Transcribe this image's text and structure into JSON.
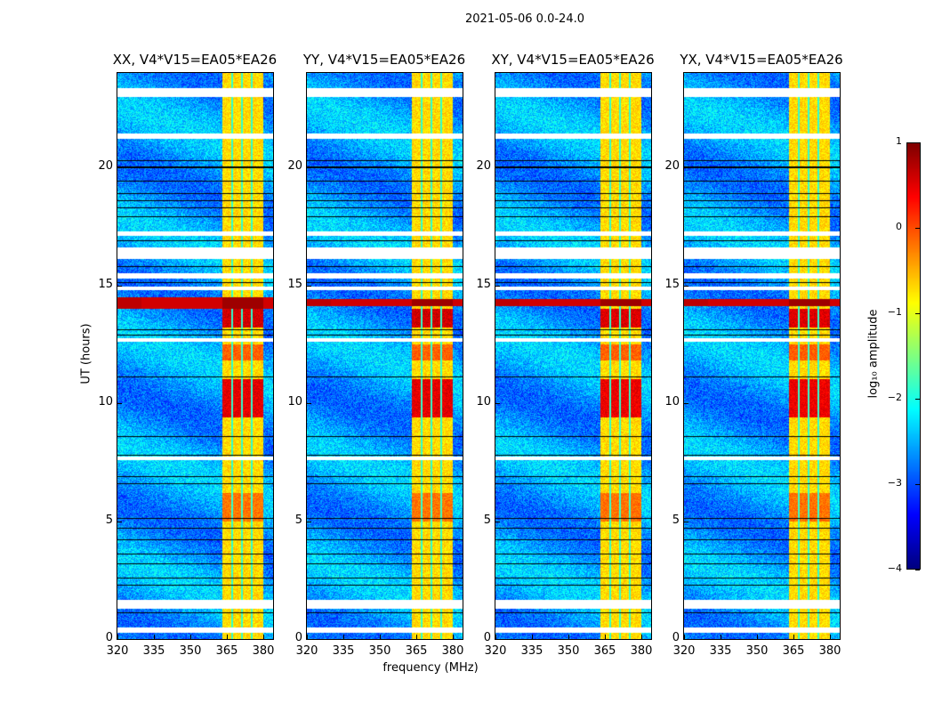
{
  "chart_data": {
    "type": "heatmap",
    "title": "2021-05-06 0.0-24.0",
    "xlabel": "frequency (MHz)",
    "ylabel": "UT (hours)",
    "xlim": [
      320,
      384
    ],
    "ylim": [
      0,
      24
    ],
    "xticks": [
      320,
      335,
      350,
      365,
      380
    ],
    "yticks": [
      0,
      5,
      10,
      15,
      20
    ],
    "panels": [
      {
        "title": "XX, V4*V15=EA05*EA26",
        "hot_scale": 1.0,
        "full_width_rfi": [
          14.0,
          14.5
        ]
      },
      {
        "title": "YY, V4*V15=EA05*EA26",
        "hot_scale": 1.0,
        "full_width_rfi": [
          14.1,
          14.4
        ]
      },
      {
        "title": "XY, V4*V15=EA05*EA26",
        "hot_scale": 0.9,
        "full_width_rfi": [
          14.1,
          14.4
        ]
      },
      {
        "title": "YX, V4*V15=EA05*EA26",
        "hot_scale": 0.9,
        "full_width_rfi": [
          14.1,
          14.4
        ]
      }
    ],
    "background_level": -2.6,
    "signal_band_mhz": [
      363,
      380
    ],
    "signal_level": -0.7,
    "band_gaps_mhz": [
      367.3,
      371.3,
      375.3
    ],
    "strong_rows_hours": [
      [
        13.2,
        14.0,
        0.6
      ],
      [
        9.4,
        11.0,
        0.5
      ],
      [
        11.8,
        12.5,
        -0.1
      ],
      [
        5.0,
        6.2,
        -0.2
      ]
    ],
    "flagged_rows_hours": [
      [
        23.0,
        23.35
      ],
      [
        21.2,
        21.45
      ],
      [
        17.1,
        17.3
      ],
      [
        16.1,
        16.6
      ],
      [
        15.3,
        15.5
      ],
      [
        14.8,
        14.95
      ],
      [
        12.6,
        12.75
      ],
      [
        7.6,
        7.75
      ],
      [
        1.3,
        1.65
      ],
      [
        0.25,
        0.5
      ]
    ],
    "black_rows_hours": [
      20.3,
      20.0,
      19.4,
      18.9,
      18.6,
      18.3,
      17.9,
      16.9,
      15.8,
      15.1,
      13.1,
      12.9,
      11.1,
      8.6,
      7.8,
      6.9,
      6.6,
      5.1,
      4.7,
      4.2,
      3.6,
      3.2,
      2.6,
      2.3,
      1.1
    ],
    "colorbar": {
      "label": "log₁₀ amplitude",
      "range": [
        -4,
        1
      ],
      "ticks": [
        "1",
        "0",
        "−1",
        "−2",
        "−3",
        "−4"
      ],
      "colormap": "jet"
    }
  }
}
